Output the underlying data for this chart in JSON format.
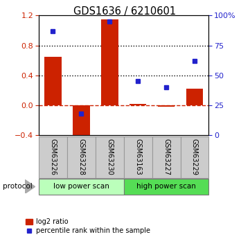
{
  "title": "GDS1636 / 6210601",
  "samples": [
    "GSM63226",
    "GSM63228",
    "GSM63230",
    "GSM63163",
    "GSM63227",
    "GSM63229"
  ],
  "log2_ratio": [
    0.65,
    -0.47,
    1.15,
    0.02,
    -0.02,
    0.22
  ],
  "percentile_rank": [
    87,
    18,
    95,
    45,
    40,
    62
  ],
  "protocol_groups": [
    {
      "label": "low power scan",
      "start": 0,
      "end": 3,
      "color": "#bbffbb"
    },
    {
      "label": "high power scan",
      "start": 3,
      "end": 6,
      "color": "#55dd55"
    }
  ],
  "bar_color": "#cc2200",
  "dot_color": "#2222cc",
  "ylim_left": [
    -0.4,
    1.2
  ],
  "ylim_right": [
    0,
    100
  ],
  "yticks_left": [
    -0.4,
    0.0,
    0.4,
    0.8,
    1.2
  ],
  "yticks_right": [
    0,
    25,
    50,
    75,
    100
  ],
  "hlines": [
    0.4,
    0.8
  ],
  "zero_line_color": "#cc2200",
  "left_tick_color": "#cc2200",
  "right_tick_color": "#2222cc"
}
